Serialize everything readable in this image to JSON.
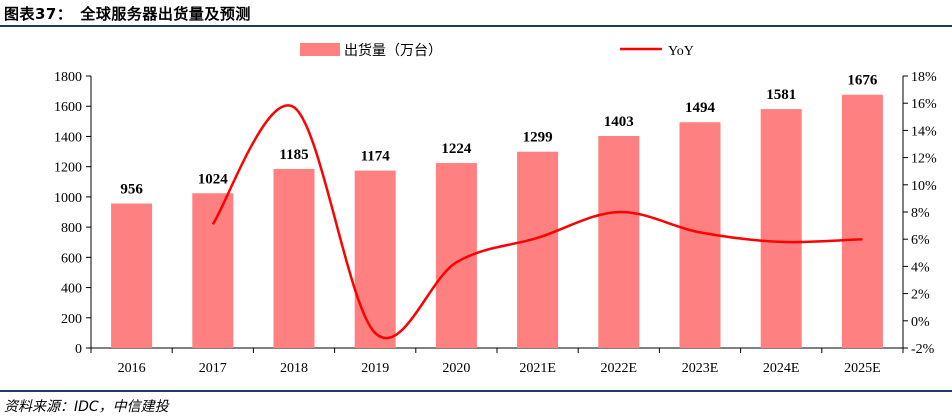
{
  "header": {
    "title": "图表37：　全球服务器出货量及预测"
  },
  "footer": {
    "source": "资料来源：IDC，中信建投"
  },
  "colors": {
    "bar": "#ff8080",
    "line": "#ff0000",
    "rule": "#1f3a68"
  },
  "chart_data": {
    "type": "bar",
    "categories": [
      "2016",
      "2017",
      "2018",
      "2019",
      "2020",
      "2021E",
      "2022E",
      "2023E",
      "2024E",
      "2025E"
    ],
    "series": [
      {
        "name": "出货量（万台）",
        "type": "bar",
        "axis": "left",
        "values": [
          956,
          1024,
          1185,
          1174,
          1224,
          1299,
          1403,
          1494,
          1581,
          1676
        ]
      },
      {
        "name": "YoY",
        "type": "line",
        "axis": "right",
        "values": [
          null,
          7.1,
          15.7,
          -0.9,
          4.3,
          6.1,
          8.0,
          6.5,
          5.8,
          6.0
        ]
      }
    ],
    "left_axis": {
      "min": 0,
      "max": 1800,
      "step": 200
    },
    "right_axis": {
      "min": -2,
      "max": 18,
      "step": 2,
      "suffix": "%"
    },
    "legend_position": "top-center",
    "data_labels": [
      "956",
      "1024",
      "1185",
      "1174",
      "1224",
      "1299",
      "1403",
      "1494",
      "1581",
      "1676"
    ]
  }
}
